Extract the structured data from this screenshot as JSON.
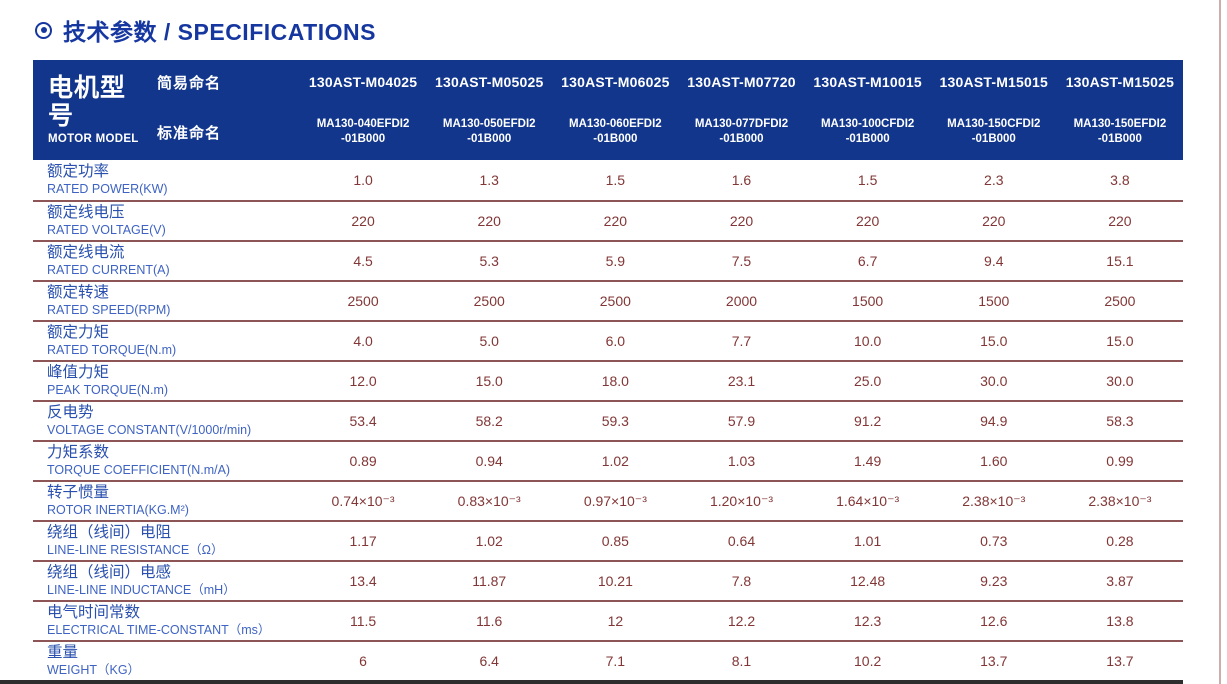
{
  "title": {
    "icon": "circle-dot",
    "text": "技术参数 / SPECIFICATIONS"
  },
  "header": {
    "motor_model_cn": "电机型号",
    "motor_model_en": "MOTOR MODEL",
    "simple_name_label": "简易命名",
    "standard_name_label": "标准命名",
    "models": [
      {
        "simple": "130AST-M04025",
        "standard_line1": "MA130-040EFDI2",
        "standard_line2": "-01B000"
      },
      {
        "simple": "130AST-M05025",
        "standard_line1": "MA130-050EFDI2",
        "standard_line2": "-01B000"
      },
      {
        "simple": "130AST-M06025",
        "standard_line1": "MA130-060EFDI2",
        "standard_line2": "-01B000"
      },
      {
        "simple": "130AST-M07720",
        "standard_line1": "MA130-077DFDI2",
        "standard_line2": "-01B000"
      },
      {
        "simple": "130AST-M10015",
        "standard_line1": "MA130-100CFDI2",
        "standard_line2": "-01B000"
      },
      {
        "simple": "130AST-M15015",
        "standard_line1": "MA130-150CFDI2",
        "standard_line2": "-01B000"
      },
      {
        "simple": "130AST-M15025",
        "standard_line1": "MA130-150EFDI2",
        "standard_line2": "-01B000"
      }
    ]
  },
  "rows": [
    {
      "cn": "额定功率",
      "en": "RATED POWER(KW)",
      "values": [
        "1.0",
        "1.3",
        "1.5",
        "1.6",
        "1.5",
        "2.3",
        "3.8"
      ]
    },
    {
      "cn": "额定线电压",
      "en": "RATED VOLTAGE(V)",
      "values": [
        "220",
        "220",
        "220",
        "220",
        "220",
        "220",
        "220"
      ]
    },
    {
      "cn": "额定线电流",
      "en": "RATED CURRENT(A)",
      "values": [
        "4.5",
        "5.3",
        "5.9",
        "7.5",
        "6.7",
        "9.4",
        "15.1"
      ]
    },
    {
      "cn": "额定转速",
      "en": "RATED SPEED(RPM)",
      "values": [
        "2500",
        "2500",
        "2500",
        "2000",
        "1500",
        "1500",
        "2500"
      ]
    },
    {
      "cn": "额定力矩",
      "en": "RATED TORQUE(N.m)",
      "values": [
        "4.0",
        "5.0",
        "6.0",
        "7.7",
        "10.0",
        "15.0",
        "15.0"
      ]
    },
    {
      "cn": "峰值力矩",
      "en": "PEAK TORQUE(N.m)",
      "values": [
        "12.0",
        "15.0",
        "18.0",
        "23.1",
        "25.0",
        "30.0",
        "30.0"
      ]
    },
    {
      "cn": "反电势",
      "en": "VOLTAGE CONSTANT(V/1000r/min)",
      "values": [
        "53.4",
        "58.2",
        "59.3",
        "57.9",
        "91.2",
        "94.9",
        "58.3"
      ]
    },
    {
      "cn": "力矩系数",
      "en": "TORQUE COEFFICIENT(N.m/A)",
      "values": [
        "0.89",
        "0.94",
        "1.02",
        "1.03",
        "1.49",
        "1.60",
        "0.99"
      ]
    },
    {
      "cn": "转子惯量",
      "en": "ROTOR INERTIA(KG.M²)",
      "values": [
        "0.74×10⁻³",
        "0.83×10⁻³",
        "0.97×10⁻³",
        "1.20×10⁻³",
        "1.64×10⁻³",
        "2.38×10⁻³",
        "2.38×10⁻³"
      ]
    },
    {
      "cn": "绕组（线间）电阻",
      "en": "LINE-LINE RESISTANCE（Ω）",
      "values": [
        "1.17",
        "1.02",
        "0.85",
        "0.64",
        "1.01",
        "0.73",
        "0.28"
      ]
    },
    {
      "cn": "绕组（线间）电感",
      "en": "LINE-LINE INDUCTANCE（mH）",
      "values": [
        "13.4",
        "11.87",
        "10.21",
        "7.8",
        "12.48",
        "9.23",
        "3.87"
      ]
    },
    {
      "cn": "电气时间常数",
      "en": "ELECTRICAL TIME-CONSTANT（ms）",
      "values": [
        "11.5",
        "11.6",
        "12",
        "12.2",
        "12.3",
        "12.6",
        "13.8"
      ]
    },
    {
      "cn": "重量",
      "en": "WEIGHT（KG）",
      "values": [
        "6",
        "6.4",
        "7.1",
        "8.1",
        "10.2",
        "13.7",
        "13.7"
      ]
    }
  ],
  "colors": {
    "header_bg": "#12368c",
    "title_blue": "#1637a0",
    "label_cn_blue": "#2950ae",
    "label_en_blue": "#3e63c2",
    "value_maroon": "#823636",
    "line_maroon": "#8d5555",
    "right_rule": "#ccacac",
    "bottom_strip": "#2e2e2e"
  }
}
